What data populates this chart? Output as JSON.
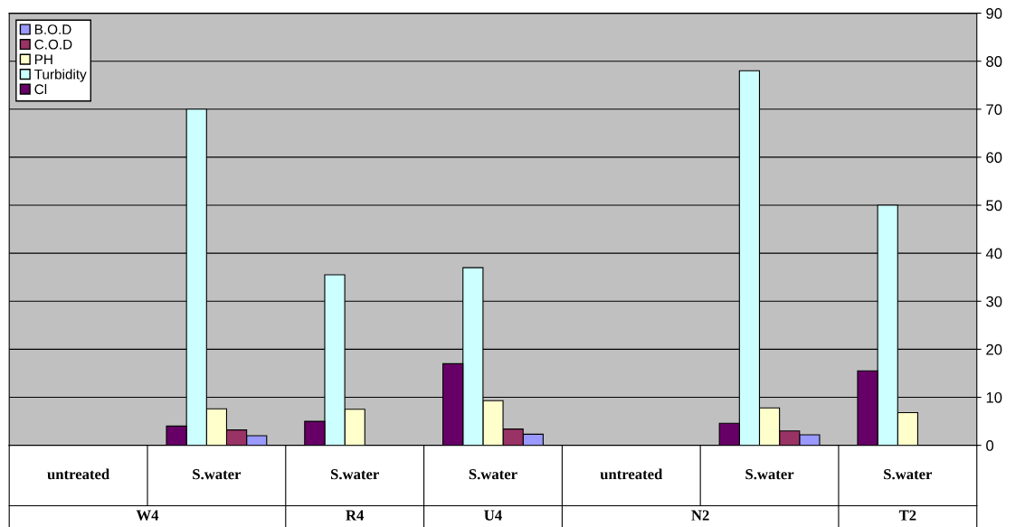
{
  "chart_data": {
    "type": "bar",
    "categories": [
      "untreated",
      "S.water",
      "S.water",
      "S.water",
      "untreated",
      "S.water",
      "S.water"
    ],
    "series": [
      {
        "name": "B.O.D",
        "color": "#9999ff",
        "values": [
          null,
          2,
          null,
          2.3,
          null,
          2.2,
          null
        ]
      },
      {
        "name": "C.O.D",
        "color": "#993366",
        "values": [
          null,
          3.2,
          null,
          3.4,
          null,
          3,
          null
        ]
      },
      {
        "name": "PH",
        "color": "#ffffcc",
        "values": [
          null,
          7.6,
          7.5,
          9.3,
          null,
          7.8,
          6.8
        ]
      },
      {
        "name": "Turbidity",
        "color": "#ccffff",
        "values": [
          null,
          70,
          35.5,
          37,
          null,
          78,
          50
        ]
      },
      {
        "name": "Cl",
        "color": "#660066",
        "values": [
          null,
          4,
          5,
          17,
          null,
          4.6,
          15.5
        ]
      }
    ],
    "annotations": [
      "W4",
      "R4",
      "U4",
      "N2",
      "T2"
    ],
    "ylim": [
      0,
      90
    ],
    "yticks": [
      0,
      10,
      20,
      30,
      40,
      50,
      60,
      70,
      80,
      90
    ],
    "grid": "y",
    "legend": "top left"
  }
}
